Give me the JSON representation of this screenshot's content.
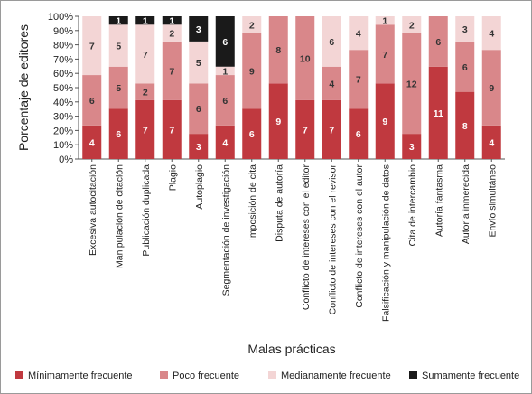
{
  "chart_data": {
    "type": "bar",
    "stacked": true,
    "percent": true,
    "xlabel": "Malas prácticas",
    "ylabel": "Porcentaje de editores",
    "ylim": [
      0,
      100
    ],
    "yticks": [
      "0%",
      "10%",
      "20%",
      "30%",
      "40%",
      "50%",
      "60%",
      "70%",
      "80%",
      "90%",
      "100%"
    ],
    "categories": [
      "Excesiva autocitación",
      "Manipulación de citación",
      "Publicación duplicada",
      "Plagio",
      "Autoplagio",
      "Segmentación de investigación",
      "Imposición de cita",
      "Disputa de autoría",
      "Conflicto de intereses con el editor",
      "Conflicto de intereses con el revisor",
      "Conflicto de intereses con el autor",
      "Falsificación y manipulación de datos",
      "Cita de intercambio",
      "Autoría fantasma",
      "Autoría inmerecida",
      "Envío simultáneo"
    ],
    "series": [
      {
        "name": "Mínimamente frecuente",
        "color": "#c0393f",
        "values": [
          4,
          6,
          7,
          7,
          3,
          4,
          6,
          9,
          7,
          7,
          6,
          9,
          3,
          11,
          8,
          4
        ]
      },
      {
        "name": "Poco frecuente",
        "color": "#d9878a",
        "values": [
          6,
          5,
          2,
          7,
          6,
          6,
          9,
          8,
          10,
          4,
          7,
          7,
          12,
          6,
          6,
          9
        ]
      },
      {
        "name": "Medianamente frecuente",
        "color": "#f3d5d5",
        "values": [
          7,
          5,
          7,
          2,
          5,
          1,
          2,
          0,
          0,
          6,
          4,
          1,
          2,
          0,
          3,
          4
        ]
      },
      {
        "name": "Sumamente frecuente",
        "color": "#1a1a1a",
        "values": [
          0,
          1,
          1,
          1,
          3,
          6,
          0,
          0,
          0,
          0,
          0,
          0,
          0,
          0,
          0,
          0
        ]
      }
    ],
    "grid": false,
    "legend": "bottom"
  }
}
